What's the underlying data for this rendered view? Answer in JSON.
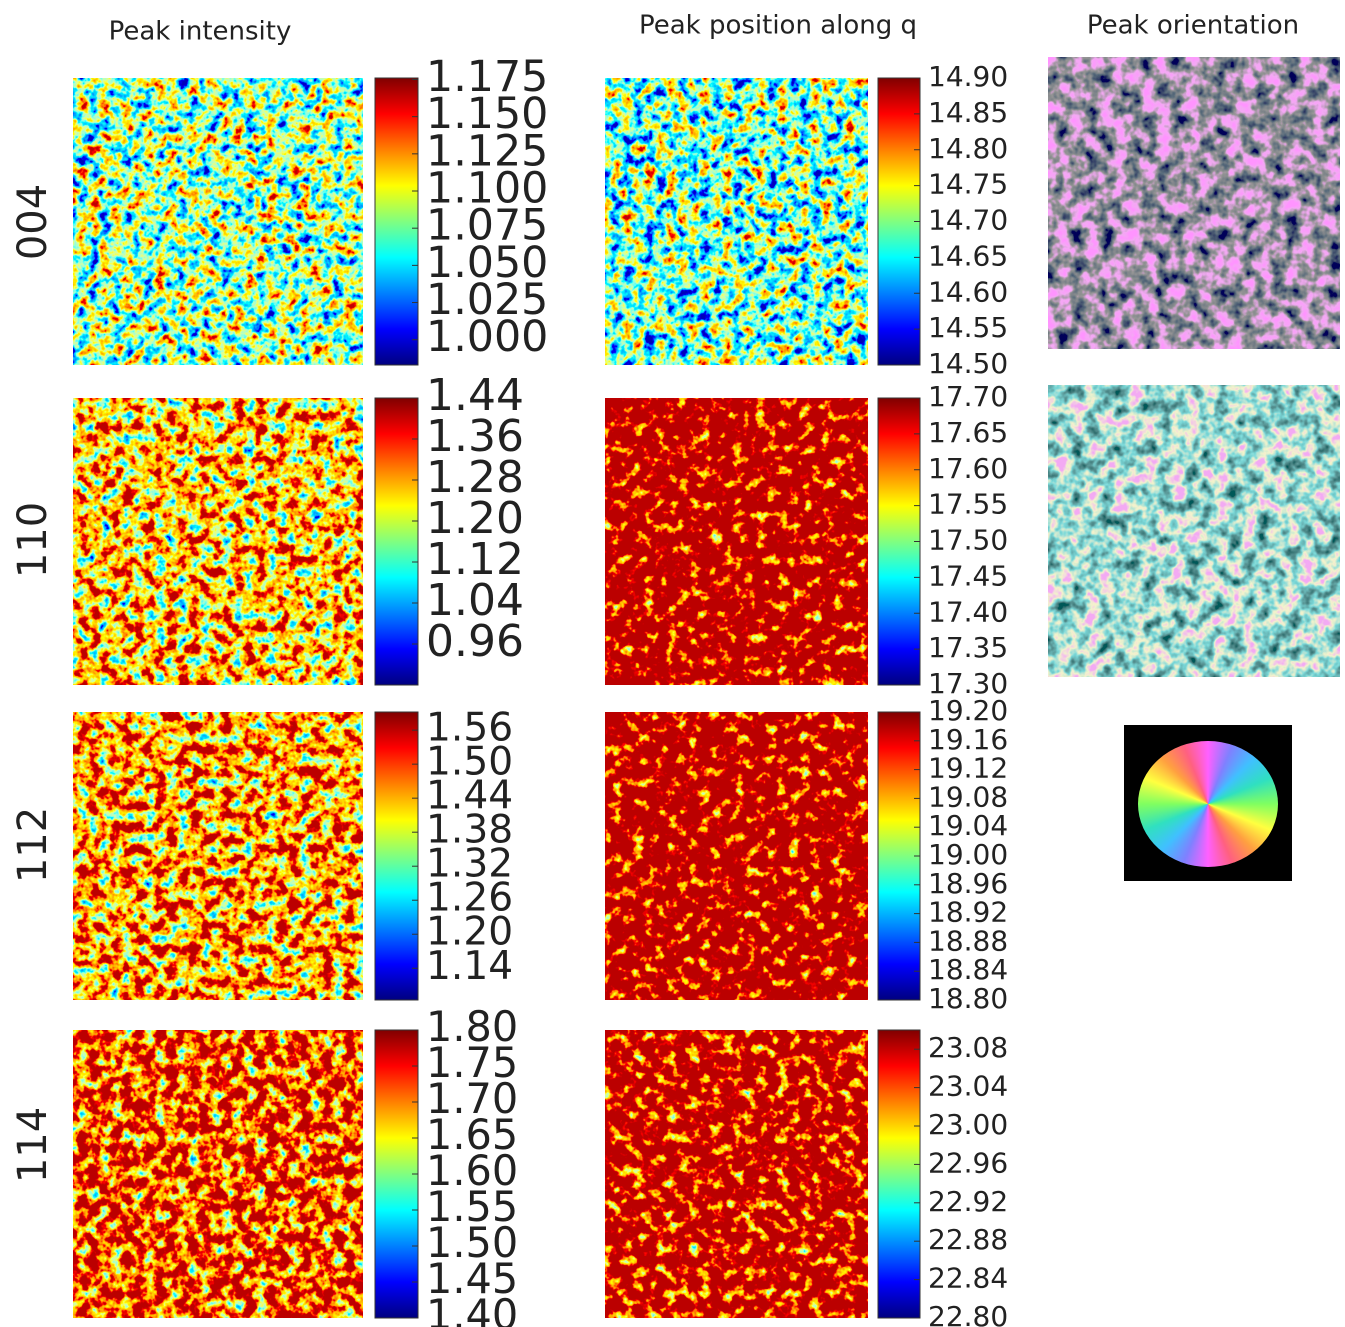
{
  "figure": {
    "column_titles": [
      "Peak intensity",
      "Peak position along q",
      "Peak orientation"
    ],
    "rows": [
      {
        "label": "004",
        "panels": [
          {
            "clim": [
              0.983,
              1.176
            ],
            "ticks": [
              {
                "value": 1,
                "label": "1.000"
              },
              1.025,
              {
                "value": 1.05,
                "label": "1.050"
              },
              1.075,
              {
                "value": 1.1,
                "label": "1.100"
              },
              1.125,
              {
                "value": 1.15,
                "label": "1.150"
              },
              1.175
            ]
          },
          {
            "clim": [
              14.5,
              14.9
            ],
            "ticks": [
              {
                "value": 14.5,
                "label": "14.50"
              },
              14.55,
              {
                "value": 14.6,
                "label": "14.60"
              },
              14.65,
              {
                "value": 14.7,
                "label": "14.70"
              },
              14.75,
              {
                "value": 14.8,
                "label": "14.80"
              },
              14.85,
              {
                "value": 14.9,
                "label": "14.90"
              }
            ]
          }
        ]
      },
      {
        "label": "110",
        "panels": [
          {
            "clim": [
              0.88,
              1.44
            ],
            "ticks": [
              0.96,
              1.04,
              1.12,
              {
                "value": 1.2,
                "label": "1.20"
              },
              1.28,
              1.36,
              1.44
            ]
          },
          {
            "clim": [
              17.3,
              17.7
            ],
            "ticks": [
              {
                "value": 17.3,
                "label": "17.30"
              },
              17.35,
              {
                "value": 17.4,
                "label": "17.40"
              },
              17.45,
              {
                "value": 17.5,
                "label": "17.50"
              },
              17.55,
              {
                "value": 17.6,
                "label": "17.60"
              },
              17.65,
              {
                "value": 17.7,
                "label": "17.70"
              }
            ]
          }
        ]
      },
      {
        "label": "112",
        "panels": [
          {
            "clim": [
              1.084,
              1.592
            ],
            "ticks": [
              1.14,
              {
                "value": 1.2,
                "label": "1.20"
              },
              1.26,
              1.32,
              1.38,
              1.44,
              {
                "value": 1.5,
                "label": "1.50"
              },
              1.56
            ]
          },
          {
            "clim": [
              18.8,
              19.2
            ],
            "ticks": [
              {
                "value": 18.8,
                "label": "18.80"
              },
              18.84,
              18.88,
              18.92,
              18.96,
              {
                "value": 19,
                "label": "19.00"
              },
              19.04,
              19.08,
              19.12,
              19.16,
              {
                "value": 19.2,
                "label": "19.20"
              }
            ]
          }
        ]
      },
      {
        "label": "114",
        "panels": [
          {
            "clim": [
              1.4,
              1.8
            ],
            "ticks": [
              {
                "value": 1.4,
                "label": "1.40"
              },
              1.45,
              {
                "value": 1.5,
                "label": "1.50"
              },
              1.55,
              {
                "value": 1.6,
                "label": "1.60"
              },
              1.65,
              {
                "value": 1.7,
                "label": "1.70"
              },
              1.75,
              {
                "value": 1.8,
                "label": "1.80"
              }
            ]
          },
          {
            "clim": [
              22.8,
              23.1
            ],
            "ticks": [
              {
                "value": 22.8,
                "label": "22.80"
              },
              22.84,
              22.88,
              22.92,
              22.96,
              {
                "value": 23,
                "label": "23.00"
              },
              23.04,
              23.08
            ]
          }
        ]
      }
    ]
  }
}
